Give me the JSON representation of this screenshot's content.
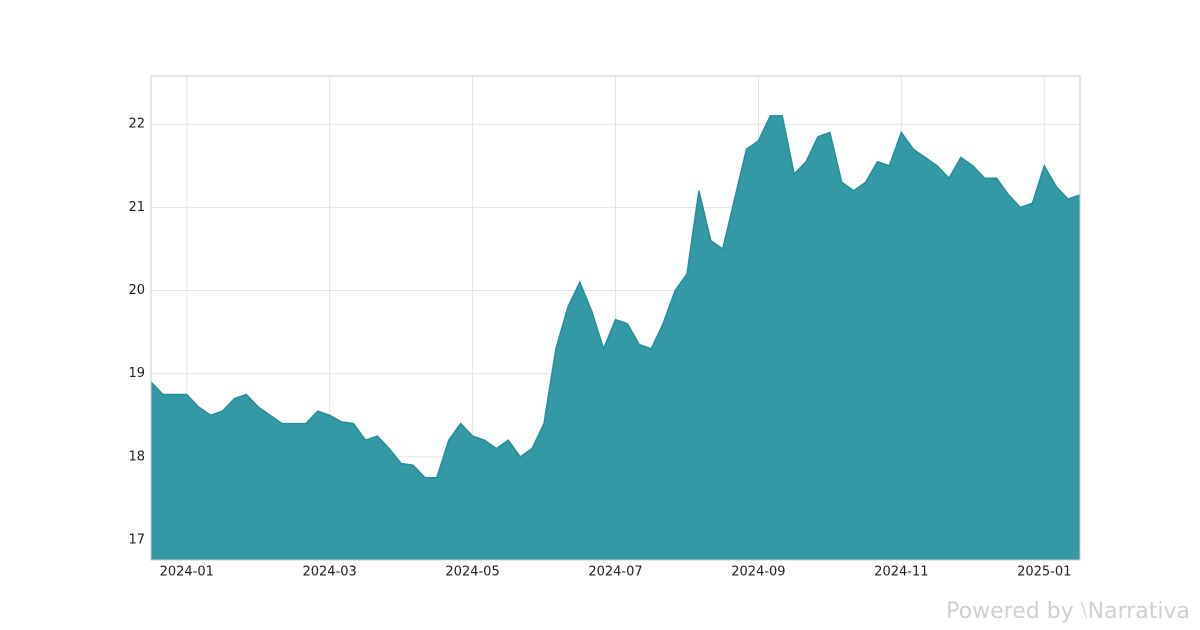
{
  "chart_data": {
    "type": "area",
    "categories": [
      null,
      null,
      null,
      "2024-01",
      null,
      null,
      null,
      null,
      null,
      null,
      null,
      null,
      null,
      null,
      null,
      "2024-03",
      null,
      null,
      null,
      null,
      null,
      null,
      null,
      null,
      null,
      null,
      null,
      "2024-05",
      null,
      null,
      null,
      null,
      null,
      null,
      null,
      null,
      null,
      null,
      null,
      "2024-07",
      null,
      null,
      null,
      null,
      null,
      null,
      null,
      null,
      null,
      null,
      null,
      "2024-09",
      null,
      null,
      null,
      null,
      null,
      null,
      null,
      null,
      null,
      null,
      null,
      "2024-11",
      null,
      null,
      null,
      null,
      null,
      null,
      null,
      null,
      null,
      null,
      null,
      "2025-01",
      null,
      null,
      null
    ],
    "values": [
      18.9,
      18.75,
      18.75,
      18.75,
      18.6,
      18.5,
      18.55,
      18.7,
      18.75,
      18.6,
      18.5,
      18.4,
      18.4,
      18.4,
      18.55,
      18.5,
      18.42,
      18.4,
      18.2,
      18.25,
      18.1,
      17.92,
      17.9,
      17.75,
      17.75,
      18.2,
      18.4,
      18.25,
      18.2,
      18.1,
      18.2,
      18.0,
      18.1,
      18.4,
      19.3,
      19.8,
      20.1,
      19.75,
      19.3,
      19.65,
      19.6,
      19.35,
      19.3,
      19.6,
      20.0,
      20.2,
      21.2,
      20.6,
      20.5,
      21.1,
      21.7,
      21.8,
      22.1,
      22.1,
      21.4,
      21.55,
      21.85,
      21.9,
      21.3,
      21.2,
      21.3,
      21.55,
      21.5,
      21.9,
      21.7,
      21.6,
      21.5,
      21.35,
      21.6,
      21.5,
      21.35,
      21.35,
      21.15,
      21.0,
      21.05,
      21.5,
      21.25,
      21.1,
      21.15
    ],
    "color": "#3399a5",
    "line_color": "#21909b",
    "ylim": [
      16.76,
      22.58
    ],
    "yticks": [
      17,
      18,
      19,
      20,
      21,
      22
    ],
    "grid": true
  },
  "watermark": "Powered by ⧵Narrativa"
}
